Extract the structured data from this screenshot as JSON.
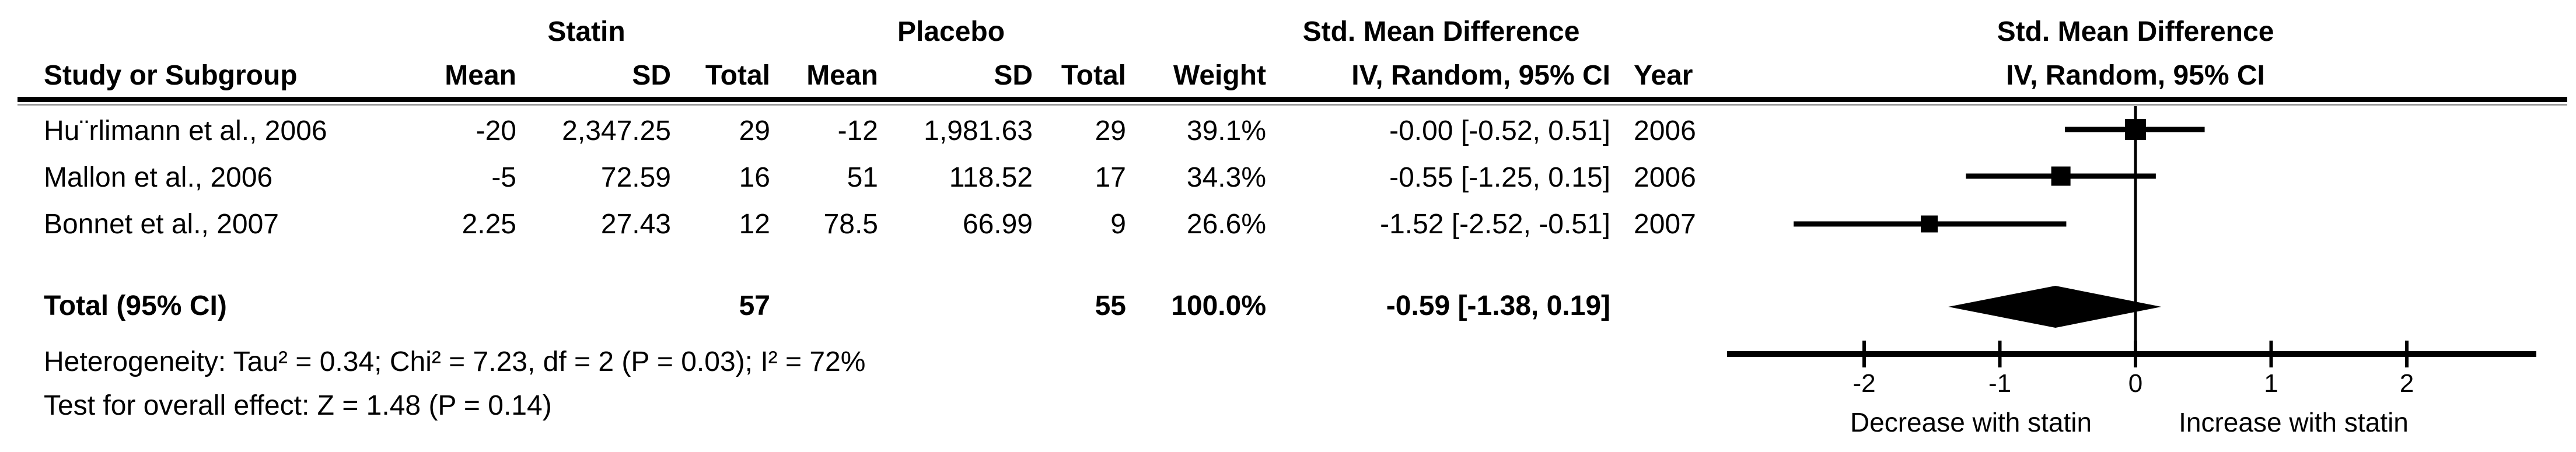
{
  "figure": {
    "group_headers": {
      "statin": "Statin",
      "placebo": "Placebo",
      "smd_table": "Std. Mean Difference",
      "smd_plot": "Std. Mean Difference"
    },
    "column_headers": {
      "study": "Study or Subgroup",
      "statin_mean": "Mean",
      "statin_sd": "SD",
      "statin_total": "Total",
      "placebo_mean": "Mean",
      "placebo_sd": "SD",
      "placebo_total": "Total",
      "weight": "Weight",
      "ci": "IV, Random, 95% CI",
      "year": "Year",
      "ci_plot": "IV, Random, 95% CI"
    },
    "studies": [
      {
        "name": "Hu¨rlimann et al., 2006",
        "statin_mean": "-20",
        "statin_sd": "2,347.25",
        "statin_total": "29",
        "placebo_mean": "-12",
        "placebo_sd": "1,981.63",
        "placebo_total": "29",
        "weight": "39.1%",
        "ci_text": "-0.00 [-0.52, 0.51]",
        "year": "2006"
      },
      {
        "name": "Mallon et al., 2006",
        "statin_mean": "-5",
        "statin_sd": "72.59",
        "statin_total": "16",
        "placebo_mean": "51",
        "placebo_sd": "118.52",
        "placebo_total": "17",
        "weight": "34.3%",
        "ci_text": "-0.55 [-1.25, 0.15]",
        "year": "2006"
      },
      {
        "name": "Bonnet et al., 2007",
        "statin_mean": "2.25",
        "statin_sd": "27.43",
        "statin_total": "12",
        "placebo_mean": "78.5",
        "placebo_sd": "66.99",
        "placebo_total": "9",
        "weight": "26.6%",
        "ci_text": "-1.52 [-2.52, -0.51]",
        "year": "2007"
      }
    ],
    "total_row": {
      "label": "Total (95% CI)",
      "statin_total": "57",
      "placebo_total": "55",
      "weight": "100.0%",
      "ci_text": "-0.59 [-1.38, 0.19]"
    },
    "footnotes": {
      "heterogeneity": "Heterogeneity: Tau² = 0.34; Chi² = 7.23, df = 2 (P = 0.03); I² = 72%",
      "overall_effect": "Test for overall effect: Z = 1.48 (P = 0.14)"
    },
    "axis": {
      "left_label": "Decrease with statin",
      "right_label": "Increase with statin"
    }
  },
  "chart_data": {
    "type": "forest",
    "title": "Std. Mean Difference  IV, Random, 95% CI",
    "effect_measure": "Std. Mean Difference (IV, Random, 95% CI)",
    "xlim": [
      -3.1,
      3.0
    ],
    "ticks": [
      -2,
      -1,
      0,
      1,
      2
    ],
    "xlabel_left": "Decrease with statin",
    "xlabel_right": "Increase with statin",
    "studies": [
      {
        "name": "Hu¨rlimann et al., 2006",
        "smd": -0.0,
        "ci_low": -0.52,
        "ci_high": 0.51,
        "weight_pct": 39.1,
        "year": "2006"
      },
      {
        "name": "Mallon et al., 2006",
        "smd": -0.55,
        "ci_low": -1.25,
        "ci_high": 0.15,
        "weight_pct": 34.3,
        "year": "2006"
      },
      {
        "name": "Bonnet et al., 2007",
        "smd": -1.52,
        "ci_low": -2.52,
        "ci_high": -0.51,
        "weight_pct": 26.6,
        "year": "2007"
      }
    ],
    "total": {
      "label": "Total (95% CI)",
      "smd": -0.59,
      "ci_low": -1.38,
      "ci_high": 0.19,
      "n_statin": 57,
      "n_placebo": 55,
      "weight_pct": 100.0
    },
    "heterogeneity": {
      "tau2": 0.34,
      "chi2": 7.23,
      "df": 2,
      "p": 0.03,
      "i2_pct": 72
    },
    "overall_effect": {
      "z": 1.48,
      "p": 0.14
    }
  }
}
